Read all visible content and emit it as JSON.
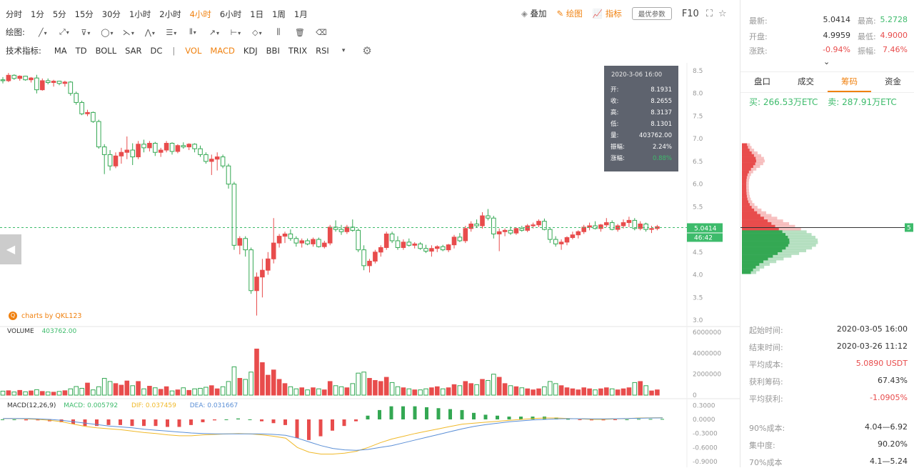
{
  "periods": [
    "分时",
    "1分",
    "5分",
    "15分",
    "30分",
    "1小时",
    "2小时",
    "4小时",
    "6小时",
    "1日",
    "1周",
    "1月"
  ],
  "active_period": "4小时",
  "draw_label": "绘图:",
  "indicator_label": "技术指标:",
  "indicators_main": [
    "MA",
    "TD",
    "BOLL",
    "SAR",
    "DC"
  ],
  "indicator_sep": "|",
  "indicators_sub": [
    "VOL",
    "MACD",
    "KDJ",
    "BBI",
    "TRIX",
    "RSI"
  ],
  "active_indicators": [
    "VOL",
    "MACD"
  ],
  "top_actions": {
    "overlay": "叠加",
    "draw": "绘图",
    "indicator": "指标",
    "options": "最优参数",
    "f10": "F10"
  },
  "tooltip": {
    "date": "2020-3-06 16:00",
    "rows": [
      {
        "label": "开:",
        "value": "8.1931"
      },
      {
        "label": "收:",
        "value": "8.2655"
      },
      {
        "label": "高:",
        "value": "8.3137"
      },
      {
        "label": "低:",
        "value": "8.1301"
      },
      {
        "label": "量:",
        "value": "403762.00"
      },
      {
        "label": "振幅:",
        "value": "2.24%"
      },
      {
        "label": "涨幅:",
        "value": "0.88%"
      }
    ]
  },
  "brand": "charts by QKL123",
  "current_price_label": "5.0414",
  "countdown_label": "46:42",
  "volume_header": {
    "label": "VOLUME",
    "value": "403762.00"
  },
  "macd_header": {
    "label": "MACD(12,26,9)",
    "macd": "MACD: 0.005792",
    "dif": "DIF: 0.037459",
    "dea": "DEA: 0.031667"
  },
  "colors": {
    "up": "#e84c4c",
    "down": "#34a853",
    "accent": "#f0810f",
    "dif": "#f0b92a",
    "dea": "#5b8fd6",
    "tooltip_bg": "#5e636e",
    "price_tag": "#3dbb6b"
  },
  "quote": {
    "latest_label": "最新:",
    "latest": "5.0414",
    "high_label": "最高:",
    "high": "5.2728",
    "open_label": "开盘:",
    "open": "4.9959",
    "low_label": "最低:",
    "low": "4.9000",
    "change_label": "涨跌:",
    "change": "-0.94%",
    "amp_label": "振幅:",
    "amp": "7.46%"
  },
  "tabs": [
    "盘口",
    "成交",
    "筹码",
    "资金"
  ],
  "active_tab": "筹码",
  "buy": "买: 266.53万ETC",
  "sell": "卖: 287.91万ETC",
  "chip_price_tag": "5",
  "stats": [
    {
      "label": "起始时间:",
      "value": "2020-03-05 16:00"
    },
    {
      "label": "结束时间:",
      "value": "2020-03-26 11:12"
    },
    {
      "label": "平均成本:",
      "value": "5.0890 USDT"
    },
    {
      "label": "获利筹码:",
      "value": "67.43%"
    },
    {
      "label": "平均获利:",
      "value": "-1.0905%"
    },
    {
      "label": "90%成本:",
      "value": "4.04—6.92"
    },
    {
      "label": "集中度:",
      "value": "90.20%"
    },
    {
      "label": "70%成本",
      "value": "4.1—5.24"
    }
  ],
  "chart_data": [
    {
      "type": "candlestick",
      "y_ticks": [
        "8.5",
        "8.0",
        "7.5",
        "7.0",
        "6.5",
        "6.0",
        "5.5",
        "5.0",
        "4.5",
        "4.0",
        "3.5",
        "3.0"
      ],
      "ylim": [
        3.0,
        8.5
      ],
      "ohlc": [
        [
          8.3,
          8.36,
          8.22,
          8.28
        ],
        [
          8.28,
          8.45,
          8.25,
          8.4
        ],
        [
          8.4,
          8.42,
          8.3,
          8.33
        ],
        [
          8.33,
          8.4,
          8.28,
          8.38
        ],
        [
          8.38,
          8.39,
          8.28,
          8.3
        ],
        [
          8.3,
          8.36,
          8.24,
          8.34
        ],
        [
          8.34,
          8.41,
          8.0,
          8.08
        ],
        [
          8.08,
          8.33,
          8.06,
          8.28
        ],
        [
          8.28,
          8.33,
          8.2,
          8.24
        ],
        [
          8.24,
          8.3,
          8.15,
          8.27
        ],
        [
          8.27,
          8.28,
          8.18,
          8.22
        ],
        [
          8.22,
          8.28,
          8.15,
          8.25
        ],
        [
          8.25,
          8.27,
          7.95,
          8.0
        ],
        [
          8.0,
          8.04,
          7.75,
          7.8
        ],
        [
          7.8,
          7.84,
          7.52,
          7.55
        ],
        [
          7.55,
          7.64,
          7.5,
          7.58
        ],
        [
          7.58,
          7.6,
          7.35,
          7.38
        ],
        [
          7.38,
          7.42,
          6.78,
          6.82
        ],
        [
          6.82,
          6.88,
          6.22,
          6.65
        ],
        [
          6.65,
          6.75,
          6.3,
          6.4
        ],
        [
          6.4,
          6.7,
          6.35,
          6.62
        ],
        [
          6.62,
          6.8,
          6.45,
          6.7
        ],
        [
          6.7,
          7.05,
          6.55,
          6.75
        ],
        [
          6.75,
          6.9,
          6.42,
          6.6
        ],
        [
          6.6,
          6.95,
          6.55,
          6.88
        ],
        [
          6.88,
          6.98,
          6.7,
          6.8
        ],
        [
          6.8,
          6.95,
          6.72,
          6.9
        ],
        [
          6.9,
          6.93,
          6.62,
          6.7
        ],
        [
          6.7,
          6.8,
          6.6,
          6.75
        ],
        [
          6.75,
          6.95,
          6.7,
          6.9
        ],
        [
          6.9,
          6.92,
          6.65,
          6.72
        ],
        [
          6.72,
          6.88,
          6.68,
          6.85
        ],
        [
          6.85,
          6.92,
          6.78,
          6.82
        ],
        [
          6.82,
          6.9,
          6.75,
          6.88
        ],
        [
          6.88,
          6.9,
          6.7,
          6.78
        ],
        [
          6.78,
          6.85,
          6.6,
          6.65
        ],
        [
          6.65,
          6.7,
          6.45,
          6.5
        ],
        [
          6.5,
          6.65,
          6.2,
          6.55
        ],
        [
          6.55,
          6.7,
          6.3,
          6.6
        ],
        [
          6.6,
          6.65,
          6.35,
          6.4
        ],
        [
          6.4,
          6.45,
          5.9,
          6.0
        ],
        [
          6.0,
          6.05,
          4.55,
          4.65
        ],
        [
          4.65,
          4.85,
          4.45,
          4.8
        ],
        [
          4.8,
          4.85,
          4.4,
          4.55
        ],
        [
          4.55,
          4.6,
          3.58,
          3.65
        ],
        [
          3.65,
          4.05,
          3.1,
          3.95
        ],
        [
          3.95,
          4.35,
          3.5,
          4.1
        ],
        [
          4.1,
          4.5,
          4.0,
          4.35
        ],
        [
          4.35,
          5.25,
          4.25,
          4.7
        ],
        [
          4.7,
          4.9,
          4.6,
          4.85
        ],
        [
          4.85,
          4.95,
          4.7,
          4.9
        ],
        [
          4.9,
          5.0,
          4.75,
          4.8
        ],
        [
          4.8,
          4.85,
          4.62,
          4.7
        ],
        [
          4.7,
          4.8,
          4.6,
          4.75
        ],
        [
          4.75,
          4.8,
          4.65,
          4.68
        ],
        [
          4.68,
          4.82,
          4.62,
          4.78
        ],
        [
          4.78,
          4.82,
          4.6,
          4.62
        ],
        [
          4.62,
          4.75,
          4.58,
          4.7
        ],
        [
          4.7,
          5.1,
          4.65,
          5.05
        ],
        [
          5.05,
          5.2,
          4.95,
          5.0
        ],
        [
          5.0,
          5.1,
          4.88,
          4.95
        ],
        [
          4.95,
          5.1,
          4.9,
          5.05
        ],
        [
          5.05,
          5.22,
          4.95,
          4.98
        ],
        [
          4.98,
          5.02,
          4.5,
          4.55
        ],
        [
          4.55,
          4.65,
          4.1,
          4.2
        ],
        [
          4.2,
          4.35,
          4.05,
          4.3
        ],
        [
          4.3,
          4.55,
          4.25,
          4.5
        ],
        [
          4.5,
          4.65,
          4.4,
          4.6
        ],
        [
          4.6,
          4.95,
          4.55,
          4.9
        ],
        [
          4.9,
          4.95,
          4.7,
          4.75
        ],
        [
          4.75,
          4.85,
          4.55,
          4.6
        ],
        [
          4.6,
          4.78,
          4.55,
          4.72
        ],
        [
          4.72,
          4.8,
          4.62,
          4.65
        ],
        [
          4.65,
          4.72,
          4.58,
          4.68
        ],
        [
          4.68,
          4.72,
          4.55,
          4.58
        ],
        [
          4.58,
          4.66,
          4.48,
          4.52
        ],
        [
          4.52,
          4.65,
          4.4,
          4.58
        ],
        [
          4.58,
          4.65,
          4.5,
          4.62
        ],
        [
          4.62,
          4.66,
          4.52,
          4.55
        ],
        [
          4.55,
          4.68,
          4.5,
          4.66
        ],
        [
          4.66,
          4.88,
          4.58,
          4.83
        ],
        [
          4.83,
          4.92,
          4.72,
          4.75
        ],
        [
          4.75,
          5.08,
          4.7,
          5.02
        ],
        [
          5.02,
          5.18,
          4.95,
          5.12
        ],
        [
          5.12,
          5.22,
          5.04,
          5.08
        ],
        [
          5.08,
          5.38,
          5.02,
          5.3
        ],
        [
          5.3,
          5.45,
          5.2,
          5.25
        ],
        [
          5.25,
          5.3,
          4.8,
          4.9
        ],
        [
          4.9,
          5.02,
          4.52,
          4.95
        ],
        [
          4.95,
          5.02,
          4.85,
          4.98
        ],
        [
          4.98,
          5.06,
          4.88,
          4.92
        ],
        [
          4.92,
          5.05,
          4.88,
          5.02
        ],
        [
          5.02,
          5.08,
          4.95,
          4.98
        ],
        [
          4.98,
          5.12,
          4.94,
          5.08
        ],
        [
          5.08,
          5.15,
          5.02,
          5.1
        ],
        [
          5.1,
          5.22,
          5.05,
          5.18
        ],
        [
          5.18,
          5.24,
          4.98,
          5.0
        ],
        [
          5.0,
          5.05,
          4.7,
          4.78
        ],
        [
          4.78,
          4.85,
          4.62,
          4.68
        ],
        [
          4.68,
          4.78,
          4.55,
          4.72
        ],
        [
          4.72,
          4.85,
          4.65,
          4.82
        ],
        [
          4.82,
          4.95,
          4.78,
          4.88
        ],
        [
          4.88,
          4.98,
          4.8,
          4.95
        ],
        [
          4.95,
          5.1,
          4.9,
          5.05
        ],
        [
          5.05,
          5.15,
          4.98,
          5.08
        ],
        [
          5.08,
          5.18,
          5.0,
          5.02
        ],
        [
          5.02,
          5.12,
          4.95,
          5.1
        ],
        [
          5.1,
          5.25,
          5.05,
          5.15
        ],
        [
          5.15,
          5.2,
          4.98,
          5.0
        ],
        [
          5.0,
          5.12,
          4.95,
          5.08
        ],
        [
          5.08,
          5.22,
          5.02,
          5.15
        ],
        [
          5.15,
          5.28,
          5.05,
          5.2
        ],
        [
          5.2,
          5.25,
          4.98,
          5.02
        ],
        [
          5.02,
          5.18,
          4.98,
          5.12
        ],
        [
          5.12,
          5.15,
          4.95,
          5.0
        ],
        [
          5.0,
          5.08,
          4.92,
          5.02
        ],
        [
          5.02,
          5.1,
          4.98,
          5.06
        ]
      ]
    },
    {
      "type": "bar",
      "name": "VOLUME",
      "y_ticks": [
        "6000000",
        "4000000",
        "2000000",
        "0"
      ],
      "ylim": [
        0,
        6000000
      ],
      "values": [
        380000,
        420000,
        300000,
        450000,
        320000,
        400000,
        520000,
        350000,
        300000,
        280000,
        350000,
        420000,
        600000,
        820000,
        650000,
        1150000,
        500000,
        800000,
        1600000,
        1300000,
        1100000,
        950000,
        1350000,
        900000,
        1300000,
        600000,
        850000,
        700000,
        550000,
        800000,
        400000,
        500000,
        700000,
        450000,
        600000,
        650000,
        750000,
        900000,
        600000,
        800000,
        1300000,
        2700000,
        1600000,
        1500000,
        2200000,
        4400000,
        3100000,
        1900000,
        2400000,
        1500000,
        1100000,
        800000,
        600000,
        700000,
        500000,
        700000,
        600000,
        500000,
        1300000,
        900000,
        800000,
        700000,
        1100000,
        2100000,
        2200000,
        1600000,
        1400000,
        1300000,
        1700000,
        1200000,
        800000,
        700000,
        600000,
        500000,
        500000,
        600000,
        700000,
        800000,
        600000,
        700000,
        1000000,
        900000,
        1300000,
        1100000,
        1000000,
        1500000,
        1400000,
        2000000,
        1700000,
        1100000,
        900000,
        800000,
        700000,
        600000,
        500000,
        600000,
        800000,
        1300000,
        1100000,
        900000,
        700000,
        600000,
        500000,
        700000,
        600000,
        500000,
        600000,
        700000,
        600000,
        500000,
        600000,
        700000,
        1200000,
        1300000,
        900000,
        400000,
        500000
      ]
    },
    {
      "type": "line",
      "name": "MACD(12,26,9)",
      "y_ticks": [
        "0.3000",
        "0.0000",
        "-0.3000",
        "-0.6000",
        "-0.9000"
      ],
      "ylim": [
        -0.9,
        0.3
      ],
      "series": [
        {
          "name": "DIF",
          "values": [
            0.02,
            0.02,
            0.01,
            0.0,
            -0.02,
            -0.05,
            -0.1,
            -0.15,
            -0.18,
            -0.2,
            -0.22,
            -0.25,
            -0.28,
            -0.3,
            -0.33,
            -0.35,
            -0.35,
            -0.33,
            -0.32,
            -0.31,
            -0.3,
            -0.31,
            -0.33,
            -0.36,
            -0.4,
            -0.6,
            -0.7,
            -0.74,
            -0.74,
            -0.72,
            -0.68,
            -0.6,
            -0.5,
            -0.42,
            -0.36,
            -0.3,
            -0.25,
            -0.2,
            -0.15,
            -0.1,
            -0.08,
            -0.06,
            -0.04,
            -0.02,
            0.0,
            0.02,
            0.03,
            0.03,
            0.02,
            0.01,
            0.0,
            0.0,
            0.01,
            0.02,
            0.03,
            0.035,
            0.037
          ]
        },
        {
          "name": "DEA",
          "values": [
            0.02,
            0.02,
            0.02,
            0.01,
            0.0,
            -0.02,
            -0.05,
            -0.08,
            -0.11,
            -0.14,
            -0.16,
            -0.18,
            -0.21,
            -0.23,
            -0.25,
            -0.27,
            -0.29,
            -0.3,
            -0.31,
            -0.31,
            -0.31,
            -0.31,
            -0.31,
            -0.32,
            -0.34,
            -0.4,
            -0.48,
            -0.56,
            -0.62,
            -0.65,
            -0.66,
            -0.64,
            -0.6,
            -0.56,
            -0.5,
            -0.44,
            -0.38,
            -0.32,
            -0.26,
            -0.2,
            -0.15,
            -0.11,
            -0.08,
            -0.05,
            -0.03,
            -0.01,
            0.0,
            0.01,
            0.015,
            0.015,
            0.01,
            0.01,
            0.015,
            0.02,
            0.025,
            0.03,
            0.032
          ]
        }
      ]
    }
  ]
}
